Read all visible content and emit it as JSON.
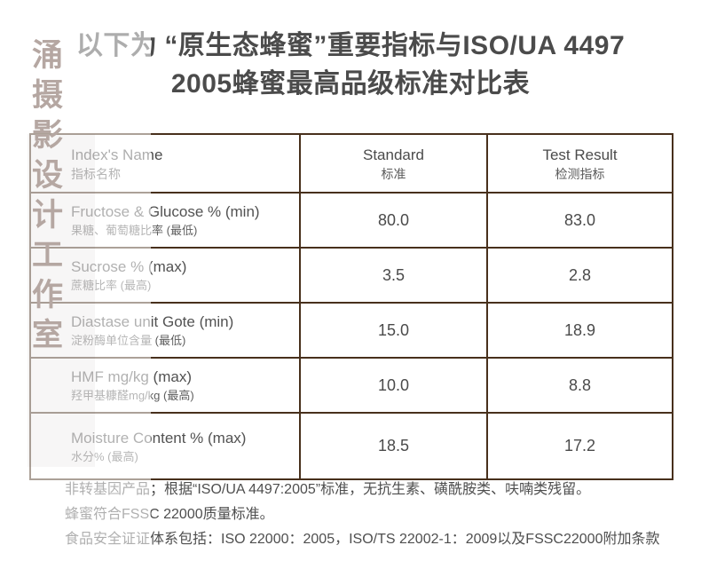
{
  "watermark": {
    "chars": [
      "涌",
      "摄",
      "影",
      "设",
      "计",
      "工",
      "作",
      "室"
    ]
  },
  "title": {
    "prefix": "以下为",
    "line1": "“原生态蜂蜜”重要指标与ISO/UA 4497",
    "line2": "2005蜂蜜最高品级标准对比表"
  },
  "table": {
    "header": {
      "name_en": "Index's Name",
      "name_cn": "指标名称",
      "standard_en": "Standard",
      "standard_cn": "标准",
      "result_en": "Test Result",
      "result_cn": "检测指标"
    },
    "rows": [
      {
        "name_en": "Fructose & Glucose % (min)",
        "name_cn": "果糖、葡萄糖比率 (最低)",
        "standard": "80.0",
        "result": "83.0"
      },
      {
        "name_en": "Sucrose % (max)",
        "name_cn": "蔗糖比率 (最高)",
        "standard": "3.5",
        "result": "2.8"
      },
      {
        "name_en": "Diastase unit Gote (min)",
        "name_cn": "淀粉酶单位含量 (最低)",
        "standard": "15.0",
        "result": "18.9"
      },
      {
        "name_en": "HMF mg/kg (max)",
        "name_cn": "羟甲基糠醛mg/kg (最高)",
        "standard": "10.0",
        "result": "8.8"
      },
      {
        "name_en": "Moisture Content % (max)",
        "name_cn": "水分% (最高)",
        "standard": "18.5",
        "result": "17.2"
      }
    ]
  },
  "footnotes": {
    "line1": "非转基因产品；根据“ISO/UA 4497:2005”标准，无抗生素、磺酰胺类、呋喃类残留。",
    "line2": "蜂蜜符合FSSC 22000质量标准。",
    "line3": "食品安全证证体系包括：ISO 22000：2005，ISO/TS 22002-1：2009以及FSSC22000附加条款"
  },
  "colors": {
    "table_border": "#48301c",
    "title_text": "#4b4b4b",
    "body_text": "#4e4e4e",
    "watermark_text": "#b5a7a2"
  }
}
